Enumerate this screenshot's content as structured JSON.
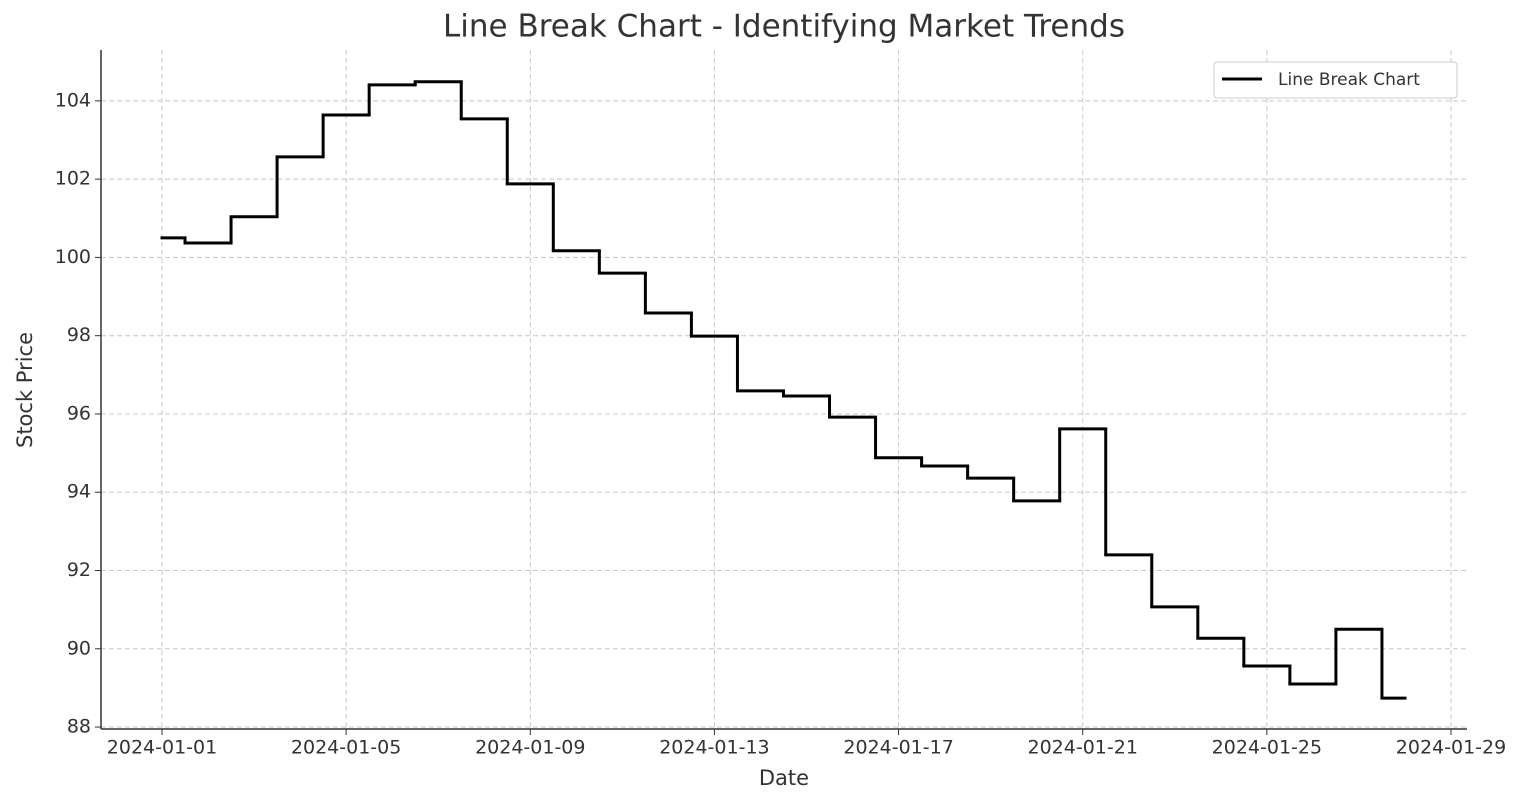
{
  "chart_data": {
    "type": "step",
    "title": "Line Break Chart - Identifying Market Trends",
    "x_label": "Date",
    "y_label": "Stock Price",
    "x": [
      "2024-01-01",
      "2024-01-02",
      "2024-01-03",
      "2024-01-04",
      "2024-01-05",
      "2024-01-06",
      "2024-01-07",
      "2024-01-08",
      "2024-01-09",
      "2024-01-10",
      "2024-01-11",
      "2024-01-12",
      "2024-01-13",
      "2024-01-14",
      "2024-01-15",
      "2024-01-16",
      "2024-01-17",
      "2024-01-18",
      "2024-01-19",
      "2024-01-20",
      "2024-01-21",
      "2024-01-22",
      "2024-01-23",
      "2024-01-24",
      "2024-01-25",
      "2024-01-26",
      "2024-01-27",
      "2024-01-28"
    ],
    "series": [
      {
        "name": "Line Break Chart",
        "color": "#000000",
        "values": [
          100.5,
          100.37,
          101.04,
          102.57,
          103.64,
          104.41,
          104.49,
          103.54,
          101.88,
          100.17,
          99.6,
          98.58,
          97.99,
          96.59,
          96.46,
          95.92,
          94.88,
          94.67,
          94.36,
          93.78,
          95.62,
          92.4,
          91.07,
          90.27,
          89.56,
          89.1,
          90.5,
          88.74
        ]
      }
    ],
    "xlim": [
      "2024-01-01",
      "2024-01-29"
    ],
    "xticks": [
      "2024-01-01",
      "2024-01-05",
      "2024-01-09",
      "2024-01-13",
      "2024-01-17",
      "2024-01-21",
      "2024-01-25",
      "2024-01-29"
    ],
    "ylim": [
      87.95,
      105.3
    ],
    "yticks": [
      88,
      90,
      92,
      94,
      96,
      98,
      100,
      102,
      104
    ],
    "grid": true,
    "legend": "upper right"
  }
}
